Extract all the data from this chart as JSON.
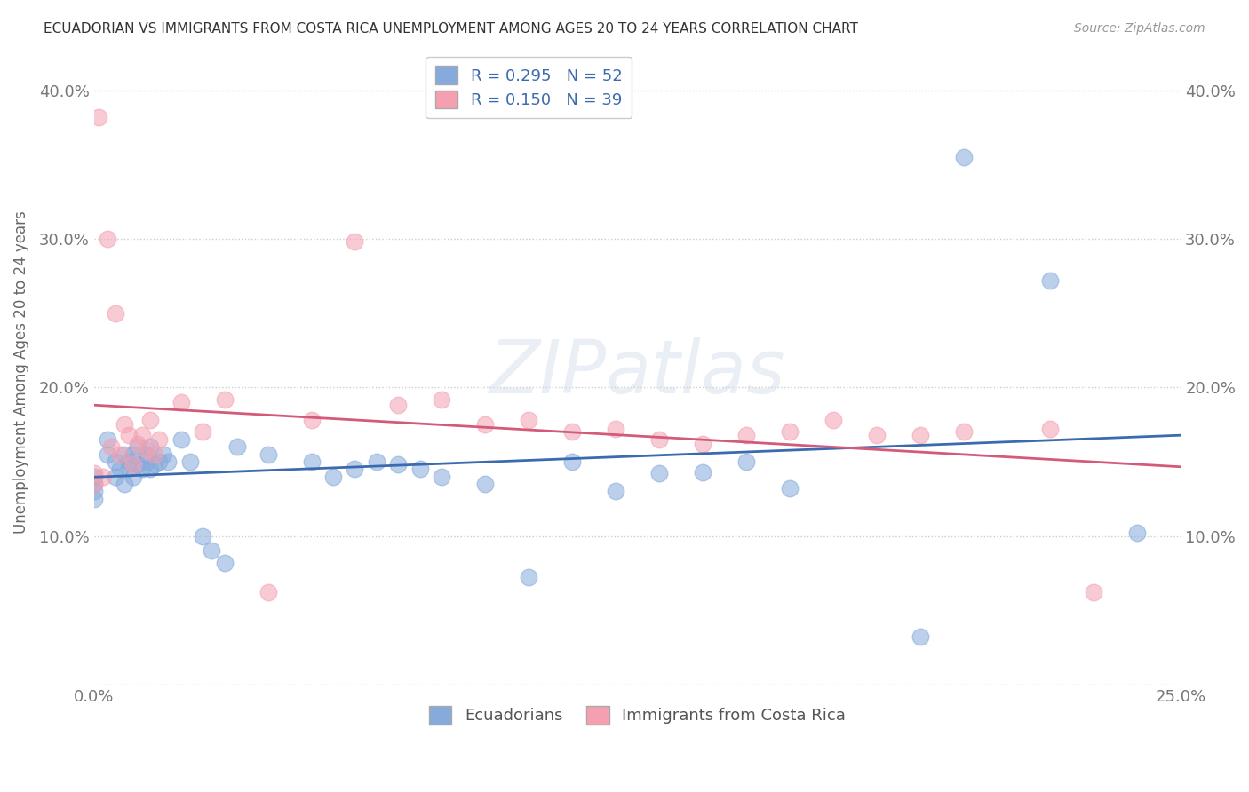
{
  "title": "ECUADORIAN VS IMMIGRANTS FROM COSTA RICA UNEMPLOYMENT AMONG AGES 20 TO 24 YEARS CORRELATION CHART",
  "source": "Source: ZipAtlas.com",
  "ylabel": "Unemployment Among Ages 20 to 24 years",
  "xmin": 0.0,
  "xmax": 0.25,
  "ymin": 0.0,
  "ymax": 0.42,
  "blue_R": 0.295,
  "blue_N": 52,
  "pink_R": 0.15,
  "pink_N": 39,
  "blue_color": "#85AADB",
  "pink_color": "#F4A0B0",
  "blue_line_color": "#3B6AAF",
  "pink_line_color": "#D45A7A",
  "legend_labels": [
    "Ecuadorians",
    "Immigrants from Costa Rica"
  ],
  "blue_scatter_x": [
    0.0,
    0.0,
    0.0,
    0.0,
    0.003,
    0.003,
    0.005,
    0.005,
    0.006,
    0.007,
    0.007,
    0.008,
    0.008,
    0.009,
    0.009,
    0.01,
    0.01,
    0.011,
    0.012,
    0.012,
    0.013,
    0.013,
    0.014,
    0.015,
    0.016,
    0.017,
    0.02,
    0.022,
    0.025,
    0.027,
    0.03,
    0.033,
    0.04,
    0.05,
    0.055,
    0.06,
    0.065,
    0.07,
    0.075,
    0.08,
    0.09,
    0.1,
    0.11,
    0.12,
    0.13,
    0.14,
    0.15,
    0.16,
    0.19,
    0.2,
    0.22,
    0.24
  ],
  "blue_scatter_y": [
    0.13,
    0.14,
    0.125,
    0.135,
    0.155,
    0.165,
    0.14,
    0.15,
    0.145,
    0.135,
    0.155,
    0.15,
    0.145,
    0.155,
    0.14,
    0.148,
    0.16,
    0.145,
    0.15,
    0.155,
    0.16,
    0.145,
    0.148,
    0.15,
    0.155,
    0.15,
    0.165,
    0.15,
    0.1,
    0.09,
    0.082,
    0.16,
    0.155,
    0.15,
    0.14,
    0.145,
    0.15,
    0.148,
    0.145,
    0.14,
    0.135,
    0.072,
    0.15,
    0.13,
    0.142,
    0.143,
    0.15,
    0.132,
    0.032,
    0.355,
    0.272,
    0.102
  ],
  "pink_scatter_x": [
    0.0,
    0.0,
    0.001,
    0.002,
    0.003,
    0.004,
    0.005,
    0.006,
    0.007,
    0.008,
    0.009,
    0.01,
    0.011,
    0.012,
    0.013,
    0.014,
    0.015,
    0.02,
    0.025,
    0.03,
    0.04,
    0.05,
    0.06,
    0.07,
    0.08,
    0.09,
    0.1,
    0.11,
    0.12,
    0.13,
    0.14,
    0.15,
    0.16,
    0.17,
    0.18,
    0.19,
    0.2,
    0.22,
    0.23
  ],
  "pink_scatter_y": [
    0.135,
    0.142,
    0.382,
    0.14,
    0.3,
    0.16,
    0.25,
    0.155,
    0.175,
    0.168,
    0.148,
    0.162,
    0.168,
    0.158,
    0.178,
    0.155,
    0.165,
    0.19,
    0.17,
    0.192,
    0.062,
    0.178,
    0.298,
    0.188,
    0.192,
    0.175,
    0.178,
    0.17,
    0.172,
    0.165,
    0.162,
    0.168,
    0.17,
    0.178,
    0.168,
    0.168,
    0.17,
    0.172,
    0.062
  ],
  "ytick_vals": [
    0.0,
    0.1,
    0.2,
    0.3,
    0.4
  ],
  "ytick_labels": [
    "",
    "10.0%",
    "20.0%",
    "30.0%",
    "40.0%"
  ],
  "xtick_vals": [
    0.0,
    0.25
  ],
  "xtick_labels": [
    "0.0%",
    "25.0%"
  ],
  "background_color": "#FFFFFF",
  "grid_color": "#CCCCCC",
  "watermark": "ZIPatlas"
}
